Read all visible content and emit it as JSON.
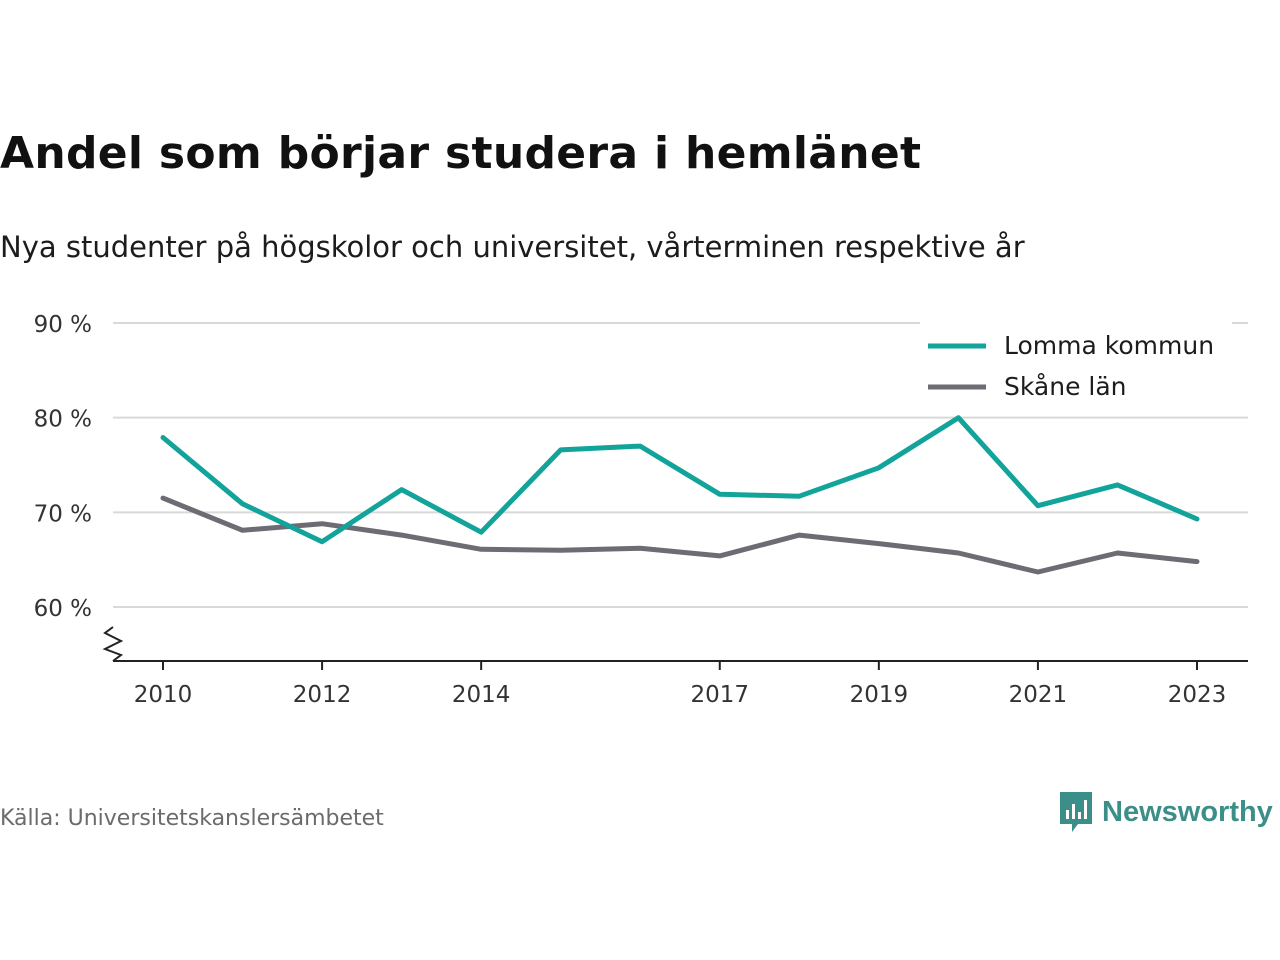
{
  "title": "Andel som börjar studera i hemlänet",
  "subtitle": "Nya studenter på högskolor och universitet, vårterminen respektive år",
  "source": "Källa: Universitetskanslersämbetet",
  "brand": {
    "name": "Newsworthy",
    "logo_icon": "newsworthy-logo-icon",
    "color": "#3c8f88"
  },
  "chart_data": {
    "type": "line",
    "x": [
      2010,
      2011,
      2012,
      2013,
      2014,
      2015,
      2016,
      2017,
      2018,
      2019,
      2020,
      2021,
      2022,
      2023
    ],
    "x_ticks": [
      "2010",
      "2012",
      "2014",
      "2017",
      "2019",
      "2021",
      "2023"
    ],
    "y_ticks": [
      60,
      70,
      80,
      90
    ],
    "y_tick_labels": [
      "60 %",
      "70 %",
      "80 %",
      "90 %"
    ],
    "ylim": [
      55,
      90
    ],
    "y_axis_broken": true,
    "grid": true,
    "legend_position": "top-right",
    "series": [
      {
        "name": "Lomma kommun",
        "color": "#12a39a",
        "values": [
          77.9,
          70.9,
          66.9,
          72.4,
          67.9,
          76.6,
          77.0,
          71.9,
          71.7,
          74.7,
          80.0,
          70.7,
          72.9,
          69.3
        ]
      },
      {
        "name": "Skåne län",
        "color": "#6d6b73",
        "values": [
          71.5,
          68.1,
          68.8,
          67.6,
          66.1,
          66.0,
          66.2,
          65.4,
          67.6,
          66.7,
          65.7,
          63.7,
          65.7,
          64.8
        ]
      }
    ]
  }
}
